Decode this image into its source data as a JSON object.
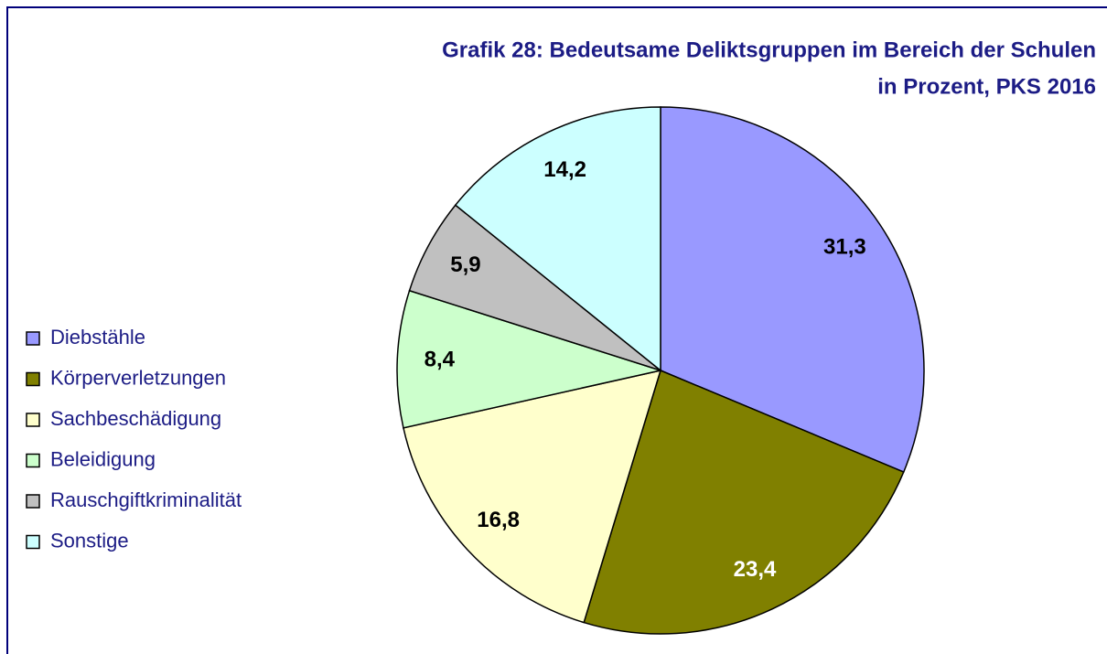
{
  "chart_data": {
    "type": "pie",
    "title": "Grafik 28: Bedeutsame Deliktsgruppen im Bereich der Schulen",
    "subtitle": "in Prozent, PKS 2016",
    "categories": [
      "Diebstähle",
      "Körperverletzungen",
      "Sachbeschädigung",
      "Beleidigung",
      "Rauschgiftkriminalität",
      "Sonstige"
    ],
    "values": [
      31.3,
      23.4,
      16.8,
      8.4,
      5.9,
      14.2
    ],
    "value_labels": [
      "31,3",
      "23,4",
      "16,8",
      "8,4",
      "5,9",
      "14,2"
    ],
    "colors": [
      "#9999ff",
      "#808000",
      "#ffffcc",
      "#ccffcc",
      "#c0c0c0",
      "#ccffff"
    ],
    "legend": "left"
  }
}
